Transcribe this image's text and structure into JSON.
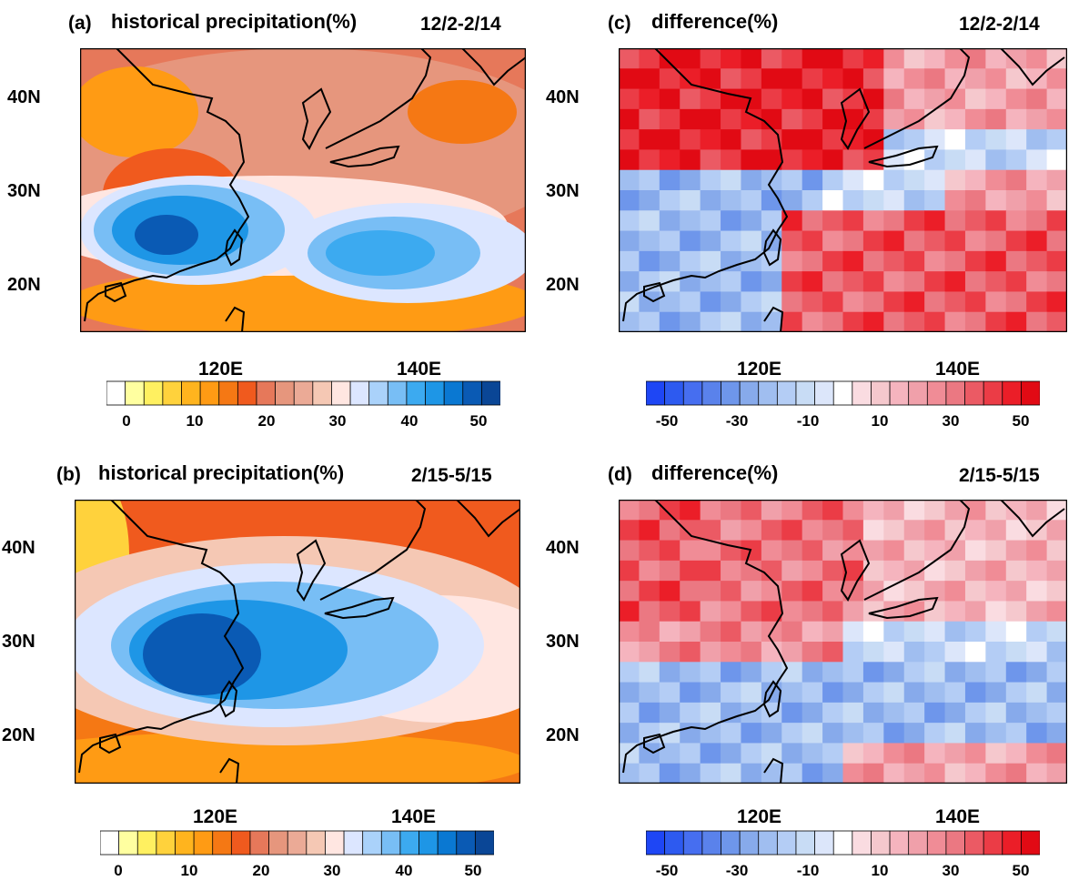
{
  "panels": [
    {
      "id": "a",
      "label": "(a)",
      "title": "historical precipitation(%)",
      "period": "12/2-2/14",
      "lat_labels": [
        "40N",
        "30N",
        "20N"
      ],
      "lon_labels": [
        "120E",
        "140E"
      ],
      "colorbar_ticks": [
        "0",
        "10",
        "20",
        "30",
        "40",
        "50"
      ],
      "colorbar_type": "sequential yellow-orange-red-white-blue"
    },
    {
      "id": "b",
      "label": "(b)",
      "title": "historical precipitation(%)",
      "period": "2/15-5/15",
      "lat_labels": [
        "40N",
        "30N",
        "20N"
      ],
      "lon_labels": [
        "120E",
        "140E"
      ],
      "colorbar_ticks": [
        "0",
        "10",
        "20",
        "30",
        "40",
        "50"
      ],
      "colorbar_type": "sequential yellow-orange-red-white-blue"
    },
    {
      "id": "c",
      "label": "(c)",
      "title": "difference(%)",
      "period": "12/2-2/14",
      "lat_labels": [
        "40N",
        "30N",
        "20N"
      ],
      "lon_labels": [
        "120E",
        "140E"
      ],
      "colorbar_ticks": [
        "-50",
        "-30",
        "-10",
        "10",
        "30",
        "50"
      ],
      "colorbar_type": "diverging blue-white-red"
    },
    {
      "id": "d",
      "label": "(d)",
      "title": "difference(%)",
      "period": "2/15-5/15",
      "lat_labels": [
        "40N",
        "30N",
        "20N"
      ],
      "lon_labels": [
        "120E",
        "140E"
      ],
      "colorbar_ticks": [
        "-50",
        "-30",
        "-10",
        "10",
        "30",
        "50"
      ],
      "colorbar_type": "diverging blue-white-red"
    }
  ],
  "colors": {
    "precip_scale": [
      "#ffffff",
      "#ffffa0",
      "#fff060",
      "#ffd23c",
      "#ffb41e",
      "#ff9b14",
      "#f57814",
      "#f05a1e",
      "#e6785a",
      "#e6967d",
      "#ebaa96",
      "#f5c8b4",
      "#ffe6e1",
      "#dce6ff",
      "#aad2fa",
      "#78bef5",
      "#3caaf0",
      "#1e96e6",
      "#0a78d2",
      "#0a5ab4",
      "#0a4696"
    ],
    "diff_scale": [
      "#1e46f5",
      "#2d5af0",
      "#466ef0",
      "#5a82eb",
      "#6e96eb",
      "#87aaeb",
      "#a0bef0",
      "#b4cdf5",
      "#c8dcf5",
      "#dce6fa",
      "#ffffff",
      "#fadce1",
      "#f5c8cd",
      "#f5b4be",
      "#f0a0aa",
      "#f08c96",
      "#eb7882",
      "#eb5a64",
      "#eb3c46",
      "#eb1e28",
      "#e10a14"
    ],
    "missing": "#c8c8c8"
  }
}
